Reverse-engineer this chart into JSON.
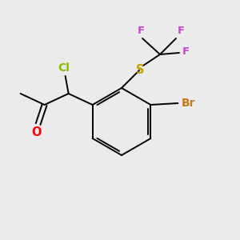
{
  "bg_color": "#ebebeb",
  "bond_color": "#000000",
  "element_colors": {
    "Cl": "#80c000",
    "O": "#ff0000",
    "S": "#c8a000",
    "F": "#cc44cc",
    "Br": "#c87820"
  },
  "font_size": 9.5
}
